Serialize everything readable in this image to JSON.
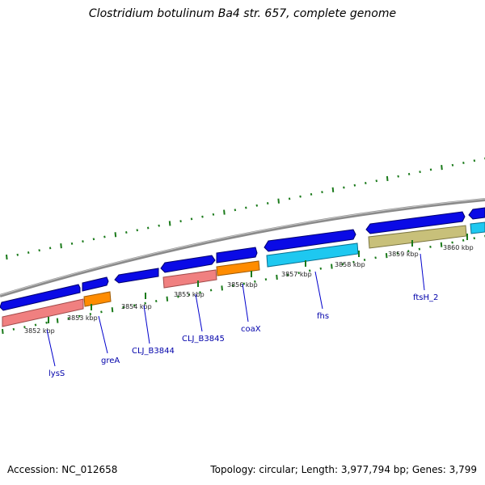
{
  "title": "Clostridium botulinum Ba4 str. 657, complete genome",
  "footer": {
    "accession": "Accession: NC_012658",
    "summary": "Topology: circular; Length: 3,977,794 bp; Genes: 3,799"
  },
  "colors": {
    "backbone": "#8a8a8a",
    "cds_blue": "#0a0ae6",
    "tick_green": "#1a7a1a",
    "gene_label": "#0000aa",
    "pink": "#f08080",
    "orange": "#ff8c00",
    "cyan": "#1ec8f0",
    "olive": "#c8c07a"
  },
  "ticks": [
    {
      "label": "3852 kbp"
    },
    {
      "label": "3853 kbp"
    },
    {
      "label": "3854 kbp"
    },
    {
      "label": "3855 kbp"
    },
    {
      "label": "3856 kbp"
    },
    {
      "label": "3857 kbp"
    },
    {
      "label": "3858 kbp"
    },
    {
      "label": "3859 kbp"
    },
    {
      "label": "3860 kbp"
    }
  ],
  "genes": [
    {
      "name": "lysS"
    },
    {
      "name": "greA"
    },
    {
      "name": "CLJ_B3844"
    },
    {
      "name": "CLJ_B3845"
    },
    {
      "name": "coaX"
    },
    {
      "name": "fhs"
    },
    {
      "name": "ftsH_2"
    }
  ]
}
